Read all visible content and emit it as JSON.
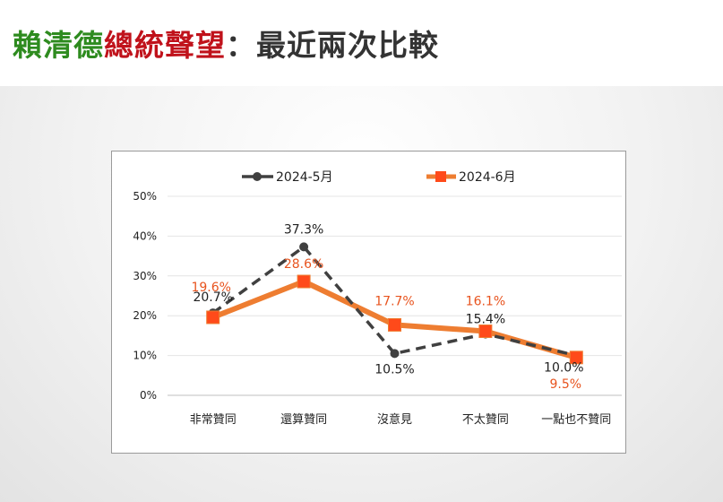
{
  "header": {
    "title_part1": "賴清德",
    "title_part2": "總統聲望",
    "title_part3": "：最近兩次比較"
  },
  "colors": {
    "title_green": "#2e8b1f",
    "title_red": "#c0121b",
    "series_may": "#404040",
    "series_june": "#ee7d31",
    "marker_june": "#ff4a1a",
    "label_june": "#e8541f"
  },
  "chart_data": {
    "type": "line",
    "categories": [
      "非常贊同",
      "還算贊同",
      "沒意見",
      "不太贊同",
      "一點也不贊同"
    ],
    "series": [
      {
        "name": "2024-5月",
        "values": [
          20.7,
          37.3,
          10.5,
          15.4,
          10.0
        ],
        "labels": [
          "20.7%",
          "37.3%",
          "10.5%",
          "15.4%",
          "10.0%"
        ],
        "style": "dashed",
        "marker": "circle",
        "color": "#404040"
      },
      {
        "name": "2024-6月",
        "values": [
          19.6,
          28.6,
          17.7,
          16.1,
          9.5
        ],
        "labels": [
          "19.6%",
          "28.6%",
          "17.7%",
          "16.1%",
          "9.5%"
        ],
        "style": "solid",
        "marker": "square",
        "color": "#ee7d31"
      }
    ],
    "ylim": [
      0,
      50
    ],
    "yticks": [
      0,
      10,
      20,
      30,
      40,
      50
    ],
    "ytick_labels": [
      "0%",
      "10%",
      "20%",
      "30%",
      "40%",
      "50%"
    ],
    "grid": true,
    "legend_position": "top"
  }
}
